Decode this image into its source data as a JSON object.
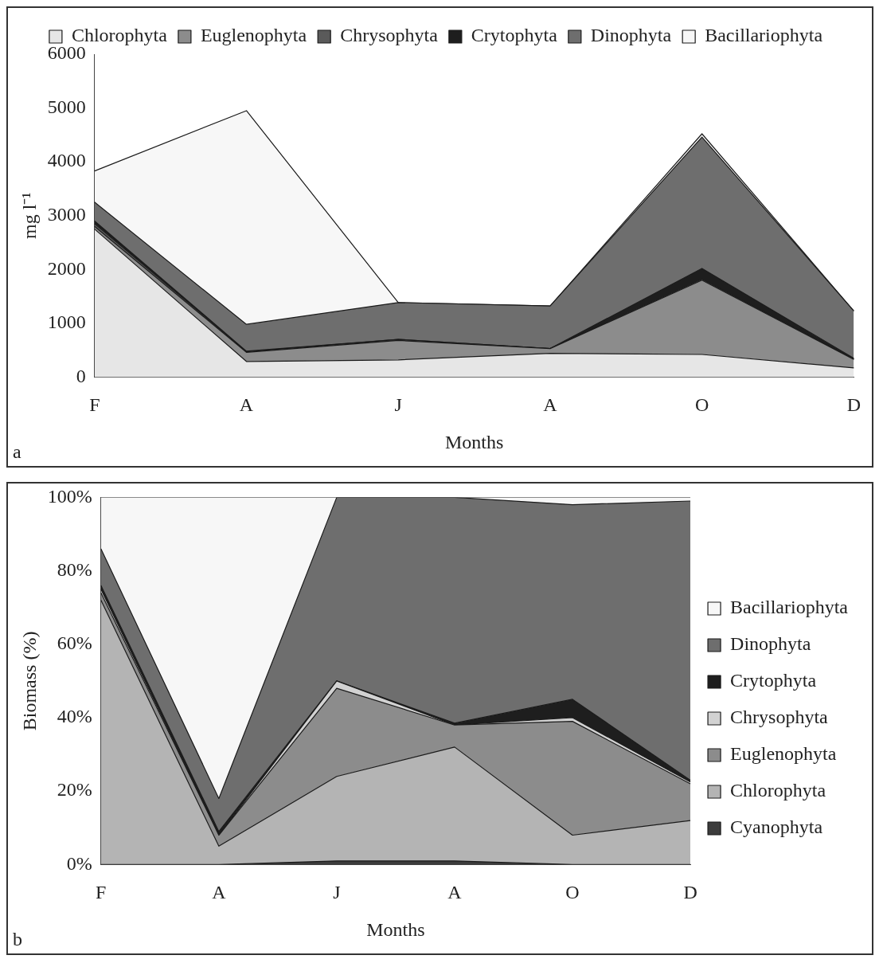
{
  "chart_data": [
    {
      "type": "area",
      "stacked": true,
      "categories": [
        "F",
        "A",
        "J",
        "A",
        "O",
        "D"
      ],
      "xlabel": "Months",
      "ylabel": "mg l⁻¹",
      "ylim": [
        0,
        6000
      ],
      "yticks": [
        0,
        1000,
        2000,
        3000,
        4000,
        5000,
        6000
      ],
      "grid": false,
      "legend": "top",
      "marker": "none",
      "annotations": [
        "a"
      ],
      "series": [
        {
          "name": "Chlorophyta",
          "color": "#e6e6e6",
          "values": [
            2750,
            290,
            320,
            440,
            420,
            170
          ]
        },
        {
          "name": "Euglenophyta",
          "color": "#8c8c8c",
          "values": [
            50,
            170,
            360,
            90,
            1380,
            160
          ]
        },
        {
          "name": "Chrysophyta",
          "color": "#5a5a5a",
          "values": [
            50,
            10,
            20,
            0,
            20,
            0
          ]
        },
        {
          "name": "Crytophyta",
          "color": "#1e1e1e",
          "values": [
            50,
            10,
            0,
            0,
            200,
            20
          ]
        },
        {
          "name": "Dinophyta",
          "color": "#6e6e6e",
          "values": [
            350,
            500,
            685,
            790,
            2440,
            880
          ]
        },
        {
          "name": "Bacillariophyta",
          "color": "#f7f7f7",
          "values": [
            580,
            3970,
            0,
            0,
            60,
            0
          ]
        }
      ]
    },
    {
      "type": "area",
      "stacked": true,
      "categories": [
        "F",
        "A",
        "J",
        "A",
        "O",
        "D"
      ],
      "xlabel": "Months",
      "ylabel": "Biomass (%)",
      "ylim": [
        0,
        100
      ],
      "yticks": [
        {
          "value": 0,
          "label": "0%"
        },
        {
          "value": 20,
          "label": "20%"
        },
        {
          "value": 40,
          "label": "40%"
        },
        {
          "value": 60,
          "label": "60%"
        },
        {
          "value": 80,
          "label": "80%"
        },
        {
          "value": 100,
          "label": "100%"
        }
      ],
      "grid": false,
      "legend": "right",
      "marker": "none",
      "annotations": [
        "b"
      ],
      "series": [
        {
          "name": "Cyanophyta",
          "color": "#3c3c3c",
          "values": [
            0,
            0,
            1,
            1,
            0,
            0
          ]
        },
        {
          "name": "Chlorophyta",
          "color": "#b4b4b4",
          "values": [
            72,
            5,
            23,
            31,
            8,
            12
          ]
        },
        {
          "name": "Euglenophyta",
          "color": "#8c8c8c",
          "values": [
            2,
            3,
            24,
            6,
            31,
            10
          ]
        },
        {
          "name": "Chrysophyta",
          "color": "#d2d2d2",
          "values": [
            1,
            0,
            2,
            0,
            1,
            0.5
          ]
        },
        {
          "name": "Crytophyta",
          "color": "#1e1e1e",
          "values": [
            1,
            1,
            0,
            0.5,
            5,
            0.5
          ]
        },
        {
          "name": "Dinophyta",
          "color": "#6e6e6e",
          "values": [
            10,
            9,
            50,
            61.5,
            53,
            76
          ]
        },
        {
          "name": "Bacillariophyta",
          "color": "#f7f7f7",
          "values": [
            14,
            82,
            0,
            0,
            2,
            1
          ]
        }
      ]
    }
  ]
}
